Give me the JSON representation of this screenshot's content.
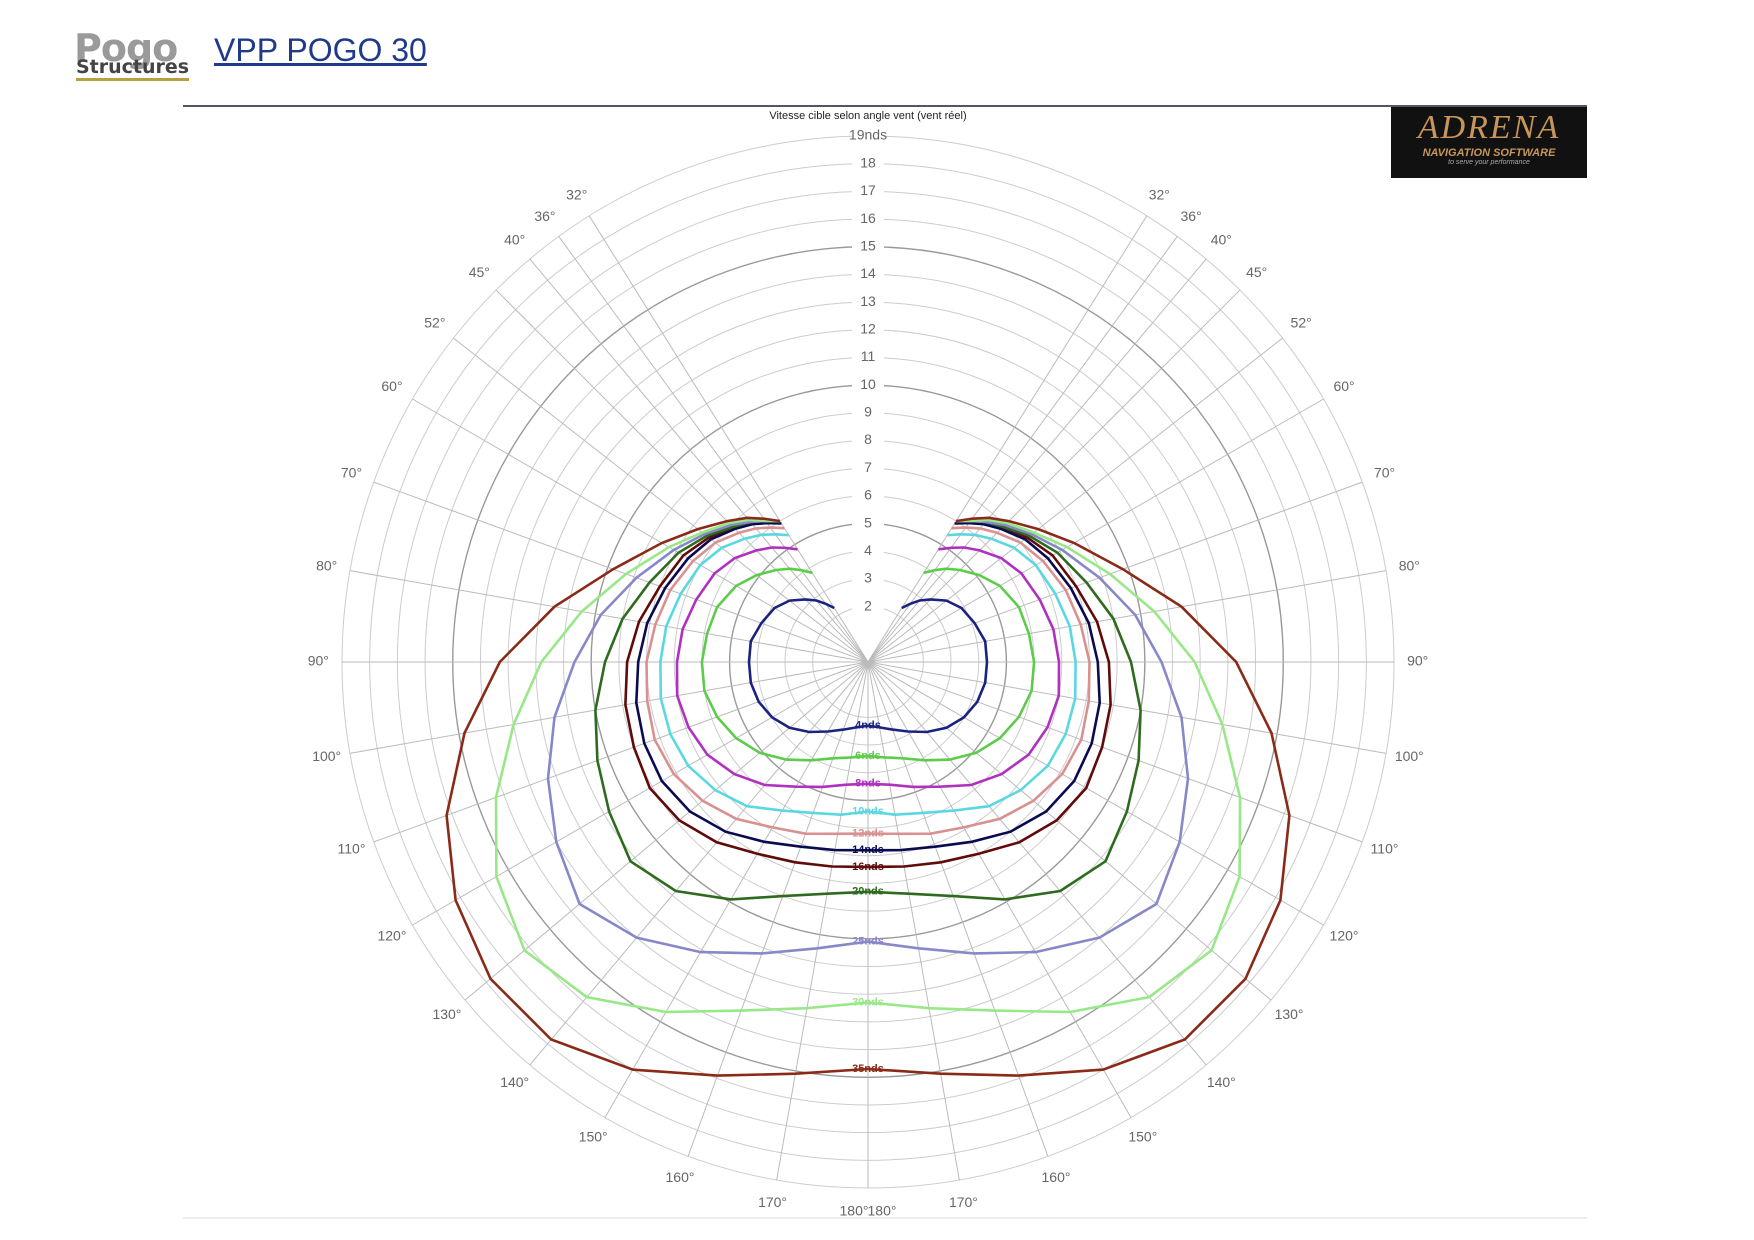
{
  "header": {
    "logo": "Pogo",
    "logo_sub": "Structures",
    "title": "VPP POGO 30",
    "brand": "ADRENA",
    "brand_sub": "NAVIGATION SOFTWARE",
    "brand_tagline": "to serve your performance"
  },
  "chart_data": {
    "type": "polar",
    "title": "Vitesse cible selon angle vent (vent réel)",
    "rlim": [
      0,
      19
    ],
    "rticks": [
      2,
      3,
      4,
      5,
      6,
      7,
      8,
      9,
      10,
      11,
      12,
      13,
      14,
      15,
      16,
      17,
      18,
      {
        "value": 19,
        "label": "19nds"
      }
    ],
    "angle_ticks": [
      {
        "value": 32,
        "label": "32°"
      },
      {
        "value": 36,
        "label": "36°"
      },
      {
        "value": 40,
        "label": "40°"
      },
      {
        "value": 45,
        "label": "45°"
      },
      {
        "value": 52,
        "label": "52°"
      },
      {
        "value": 60,
        "label": "60°"
      },
      {
        "value": 70,
        "label": "70°"
      },
      {
        "value": 80,
        "label": "80°"
      },
      {
        "value": 90,
        "label": "90°"
      },
      {
        "value": 100,
        "label": "100°"
      },
      {
        "value": 110,
        "label": "110°"
      },
      {
        "value": 120,
        "label": "120°"
      },
      {
        "value": 130,
        "label": "130°"
      },
      {
        "value": 140,
        "label": "140°"
      },
      {
        "value": 150,
        "label": "150°"
      },
      {
        "value": 160,
        "label": "160°"
      },
      {
        "value": 170,
        "label": "170°"
      },
      {
        "value": 180,
        "label": "180°"
      }
    ],
    "x": [
      32,
      36,
      40,
      45,
      52,
      60,
      70,
      80,
      90,
      100,
      110,
      120,
      130,
      140,
      150,
      160,
      170,
      180
    ],
    "mirrored": true,
    "series": [
      {
        "name": "4nds",
        "color": "#1a237e",
        "values": [
          2.3,
          2.6,
          2.9,
          3.2,
          3.6,
          3.9,
          4.1,
          4.3,
          4.3,
          4.3,
          4.2,
          4.0,
          3.7,
          3.3,
          2.9,
          2.6,
          2.4,
          2.3
        ]
      },
      {
        "name": "6nds",
        "color": "#5ccc4a",
        "values": [
          3.8,
          4.1,
          4.4,
          4.7,
          5.1,
          5.5,
          5.8,
          5.9,
          6.0,
          6.0,
          5.8,
          5.5,
          5.1,
          4.6,
          4.1,
          3.7,
          3.5,
          3.4
        ]
      },
      {
        "name": "8nds",
        "color": "#b030c0",
        "values": [
          4.8,
          5.1,
          5.4,
          5.7,
          6.1,
          6.4,
          6.6,
          6.8,
          6.9,
          7.0,
          6.9,
          6.7,
          6.3,
          5.8,
          5.2,
          4.8,
          4.5,
          4.4
        ]
      },
      {
        "name": "10nds",
        "color": "#5ad8e0",
        "values": [
          5.4,
          5.7,
          6.0,
          6.3,
          6.7,
          7.0,
          7.2,
          7.4,
          7.5,
          7.6,
          7.6,
          7.5,
          7.2,
          6.8,
          6.2,
          5.8,
          5.6,
          5.4
        ]
      },
      {
        "name": "12nds",
        "color": "#d89090",
        "values": [
          5.7,
          6.0,
          6.3,
          6.6,
          7.0,
          7.3,
          7.6,
          7.8,
          8.0,
          8.1,
          8.2,
          8.1,
          7.8,
          7.4,
          6.9,
          6.6,
          6.3,
          6.2
        ]
      },
      {
        "name": "14nds",
        "color": "#0a0a50",
        "values": [
          5.9,
          6.2,
          6.5,
          6.8,
          7.2,
          7.5,
          7.8,
          8.1,
          8.3,
          8.5,
          8.6,
          8.6,
          8.4,
          8.0,
          7.5,
          7.1,
          6.9,
          6.8
        ]
      },
      {
        "name": "16nds",
        "color": "#600a0a",
        "values": [
          6.0,
          6.3,
          6.6,
          6.9,
          7.3,
          7.7,
          8.0,
          8.4,
          8.7,
          8.9,
          9.0,
          9.1,
          8.9,
          8.5,
          8.0,
          7.7,
          7.5,
          7.4
        ]
      },
      {
        "name": "20nds",
        "color": "#2e6b1e",
        "values": [
          6.0,
          6.3,
          6.6,
          6.9,
          7.4,
          7.9,
          8.4,
          9.0,
          9.5,
          10.0,
          10.4,
          10.8,
          11.2,
          10.8,
          9.9,
          9.0,
          8.5,
          8.3
        ]
      },
      {
        "name": "25nds",
        "color": "#8888c8",
        "values": [
          6.0,
          6.3,
          6.6,
          7.0,
          7.5,
          8.1,
          8.9,
          9.8,
          10.6,
          11.5,
          12.3,
          13.0,
          13.6,
          13.0,
          12.1,
          11.2,
          10.5,
          10.1
        ]
      },
      {
        "name": "30nds",
        "color": "#98e888",
        "values": [
          6.0,
          6.3,
          6.7,
          7.1,
          7.6,
          8.3,
          9.3,
          10.5,
          11.8,
          13.0,
          14.3,
          15.5,
          16.2,
          15.8,
          14.6,
          13.4,
          12.7,
          12.3
        ]
      },
      {
        "name": "35nds",
        "color": "#8a2a18",
        "values": [
          6.0,
          6.4,
          6.8,
          7.2,
          7.8,
          8.6,
          9.8,
          11.5,
          13.3,
          14.8,
          16.2,
          17.2,
          17.8,
          17.8,
          17.0,
          15.9,
          15.1,
          14.7
        ]
      }
    ]
  }
}
